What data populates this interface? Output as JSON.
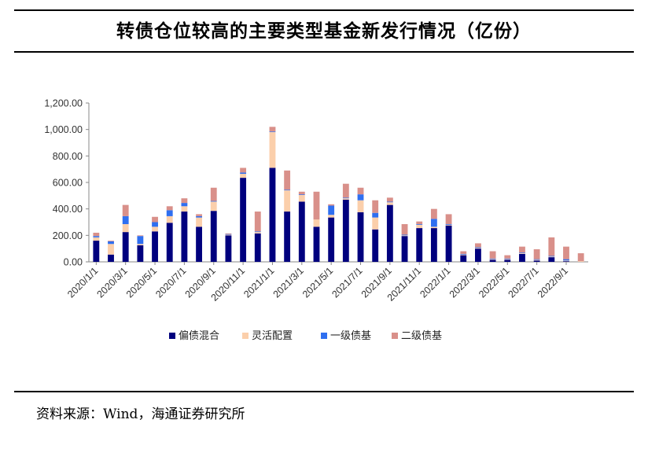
{
  "page": {
    "title": "转债仓位较高的主要类型基金新发行情况（亿份）",
    "source": "资料来源：Wind，海通证券研究所"
  },
  "chart_data": {
    "type": "bar",
    "stacked": true,
    "title": "",
    "xlabel": "",
    "ylabel": "",
    "ylim": [
      0,
      1200
    ],
    "yticks": [
      "0.00",
      "200.00",
      "400.00",
      "600.00",
      "800.00",
      "1,000.00",
      "1,200.00"
    ],
    "legend_position": "bottom",
    "grid": false,
    "categories": [
      "2020/1/1",
      "2020/2/1",
      "2020/3/1",
      "2020/4/1",
      "2020/5/1",
      "2020/6/1",
      "2020/7/1",
      "2020/8/1",
      "2020/9/1",
      "2020/10/1",
      "2020/11/1",
      "2020/12/1",
      "2021/1/1",
      "2021/2/1",
      "2021/3/1",
      "2021/4/1",
      "2021/5/1",
      "2021/6/1",
      "2021/7/1",
      "2021/8/1",
      "2021/9/1",
      "2021/10/1",
      "2021/11/1",
      "2021/12/1",
      "2022/1/1",
      "2022/2/1",
      "2022/3/1",
      "2022/4/1",
      "2022/5/1",
      "2022/6/1",
      "2022/7/1",
      "2022/8/1",
      "2022/9/1",
      "2022/10/1"
    ],
    "x_tick_labels": [
      "2020/1/1",
      "2020/3/1",
      "2020/5/1",
      "2020/7/1",
      "2020/9/1",
      "2020/11/1",
      "2021/1/1",
      "2021/3/1",
      "2021/5/1",
      "2021/7/1",
      "2021/9/1",
      "2021/11/1",
      "2022/1/1",
      "2022/3/1",
      "2022/5/1",
      "2022/7/1",
      "2022/9/1"
    ],
    "series": [
      {
        "name": "偏债混合",
        "color": "#00007e",
        "values": [
          160,
          55,
          225,
          125,
          230,
          295,
          380,
          265,
          385,
          200,
          635,
          215,
          710,
          380,
          455,
          265,
          335,
          470,
          375,
          245,
          430,
          195,
          255,
          255,
          275,
          50,
          100,
          15,
          15,
          60,
          10,
          35,
          5,
          0
        ]
      },
      {
        "name": "灵活配置",
        "color": "#fbcfab",
        "values": [
          25,
          80,
          60,
          10,
          35,
          50,
          40,
          70,
          70,
          5,
          30,
          10,
          270,
          160,
          50,
          55,
          20,
          10,
          90,
          90,
          20,
          5,
          25,
          10,
          5,
          5,
          5,
          5,
          5,
          5,
          5,
          5,
          5,
          5
        ]
      },
      {
        "name": "一级债基",
        "color": "#2f6ff0",
        "values": [
          10,
          20,
          60,
          60,
          35,
          45,
          25,
          10,
          5,
          5,
          10,
          5,
          5,
          5,
          5,
          0,
          70,
          5,
          45,
          35,
          5,
          5,
          5,
          60,
          5,
          5,
          5,
          5,
          5,
          5,
          5,
          5,
          10,
          0
        ]
      },
      {
        "name": "二级债基",
        "color": "#d9908a",
        "values": [
          25,
          5,
          85,
          5,
          40,
          30,
          35,
          15,
          100,
          5,
          35,
          150,
          35,
          145,
          20,
          210,
          10,
          105,
          50,
          95,
          30,
          80,
          20,
          75,
          75,
          20,
          30,
          55,
          25,
          45,
          75,
          140,
          95,
          60
        ]
      }
    ]
  }
}
